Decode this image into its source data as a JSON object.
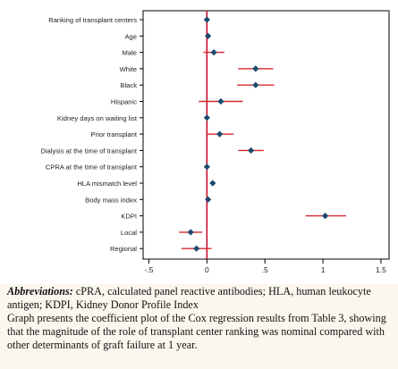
{
  "chart_data": {
    "type": "scatter",
    "subtype": "coefficient-plot",
    "title": "",
    "xlabel": "",
    "ylabel": "",
    "xlim": [
      -0.55,
      1.57
    ],
    "xticks": [
      -0.5,
      0,
      0.5,
      1,
      1.5
    ],
    "xtick_labels": [
      "-.5",
      "0",
      ".5",
      "1",
      "1.5"
    ],
    "reference_line_x": 0,
    "grid": false,
    "categories": [
      "Ranking of transplant centers",
      "Age",
      "Male",
      "White",
      "Black",
      "Hispanic",
      "Kidney days on waiting list",
      "Prior transplant",
      "Dialysis at the time of transplant",
      "CPRA at the time of transplant",
      "HLA mismatch level",
      "Body mass index",
      "KDPI",
      "Local",
      "Regional"
    ],
    "series": [
      {
        "estimate": [
          0.0,
          0.01,
          0.06,
          0.42,
          0.42,
          0.12,
          0.0,
          0.11,
          0.38,
          0.0,
          0.05,
          0.01,
          1.02,
          -0.14,
          -0.09
        ],
        "ci_low": [
          -0.01,
          0.0,
          -0.03,
          0.27,
          0.26,
          -0.07,
          -0.01,
          0.0,
          0.27,
          -0.01,
          0.03,
          -0.01,
          0.85,
          -0.24,
          -0.22
        ],
        "ci_high": [
          0.01,
          0.02,
          0.15,
          0.57,
          0.58,
          0.31,
          0.01,
          0.23,
          0.49,
          0.01,
          0.07,
          0.03,
          1.2,
          -0.04,
          0.04
        ]
      }
    ],
    "colors": {
      "marker": "#1d4a6e",
      "ci_line": "#d6272c",
      "ref_line": "#c8102e",
      "axis": "#000000"
    }
  },
  "caption": {
    "abbreviations_label": "Abbreviations:",
    "abbreviations_text": " cPRA, calculated panel reactive antibodies; HLA, human leukocyte antigen; KDPI, Kidney Donor Profile Index",
    "description": "Graph presents the coefficient plot of the Cox regression results from Table 3, showing that the magnitude of the role of transplant center ranking was nominal compared with other determinants of graft failure at 1 year."
  }
}
